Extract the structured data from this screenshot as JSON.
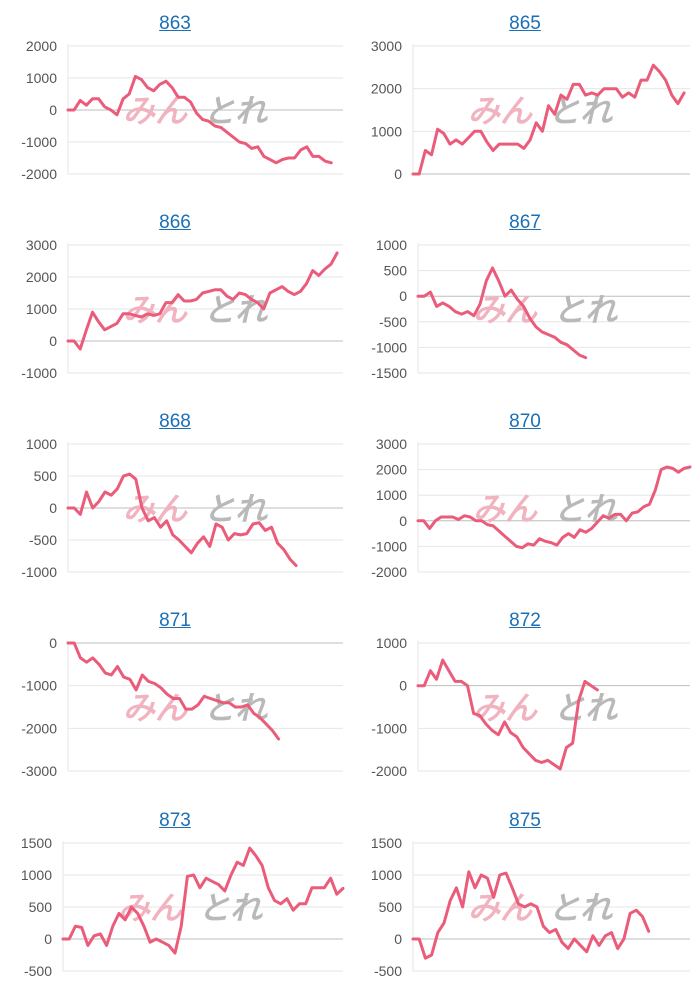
{
  "colors": {
    "line": "#ea5c7a",
    "grid": "#e6e6e6",
    "axis": "#c8c8c8",
    "title_link": "#1a6fb5",
    "tick_text": "#555555"
  },
  "watermark": {
    "left": "みん",
    "right": "とれ"
  },
  "chart_data": [
    {
      "type": "line",
      "title": "863",
      "ylim": [
        -2000,
        2000
      ],
      "yticks": [
        2000,
        1000,
        0,
        -1000,
        -2000
      ],
      "values": [
        0,
        0,
        300,
        150,
        350,
        350,
        100,
        0,
        -150,
        350,
        500,
        1050,
        950,
        700,
        600,
        800,
        900,
        700,
        400,
        400,
        250,
        -100,
        -300,
        -350,
        -500,
        -550,
        -700,
        -850,
        -1000,
        -1050,
        -1200,
        -1150,
        -1450,
        -1550,
        -1650,
        -1550,
        -1500,
        -1500,
        -1250,
        -1150,
        -1450,
        -1450,
        -1600,
        -1650
      ]
    },
    {
      "type": "line",
      "title": "865",
      "ylim": [
        0,
        3000
      ],
      "yticks": [
        3000,
        2000,
        1000,
        0
      ],
      "values": [
        0,
        0,
        550,
        450,
        1050,
        950,
        700,
        800,
        700,
        850,
        1000,
        1000,
        750,
        550,
        700,
        700,
        700,
        700,
        600,
        800,
        1200,
        1000,
        1600,
        1400,
        1850,
        1750,
        2100,
        2100,
        1850,
        1900,
        1850,
        2000,
        2000,
        2000,
        1800,
        1900,
        1800,
        2200,
        2200,
        2550,
        2400,
        2200,
        1850,
        1650,
        1900
      ]
    },
    {
      "type": "line",
      "title": "866",
      "ylim": [
        -1000,
        3000
      ],
      "yticks": [
        3000,
        2000,
        1000,
        0,
        -1000
      ],
      "values": [
        0,
        0,
        -250,
        350,
        900,
        600,
        350,
        450,
        550,
        850,
        850,
        800,
        750,
        850,
        800,
        850,
        1200,
        1200,
        1450,
        1250,
        1250,
        1300,
        1500,
        1550,
        1600,
        1600,
        1400,
        1300,
        1500,
        1450,
        1300,
        1200,
        1000,
        1500,
        1600,
        1700,
        1550,
        1450,
        1550,
        1800,
        2200,
        2050,
        2250,
        2400,
        2750
      ]
    },
    {
      "type": "line",
      "title": "867",
      "ylim": [
        -1500,
        1000
      ],
      "yticks": [
        1000,
        500,
        0,
        -500,
        -1000,
        -1500
      ],
      "values": [
        0,
        0,
        80,
        -200,
        -130,
        -200,
        -300,
        -350,
        -300,
        -380,
        -150,
        300,
        550,
        300,
        0,
        120,
        -60,
        -200,
        -430,
        -600,
        -700,
        -750,
        -800,
        -900,
        -950,
        -1050,
        -1150,
        -1200
      ]
    },
    {
      "type": "line",
      "title": "868",
      "ylim": [
        -1000,
        1000
      ],
      "yticks": [
        1000,
        500,
        0,
        -500,
        -1000
      ],
      "values": [
        0,
        0,
        -100,
        250,
        0,
        100,
        250,
        200,
        300,
        500,
        530,
        450,
        0,
        -200,
        -150,
        -300,
        -200,
        -420,
        -500,
        -600,
        -700,
        -550,
        -450,
        -600,
        -250,
        -300,
        -500,
        -400,
        -420,
        -400,
        -250,
        -230,
        -350,
        -300,
        -550,
        -650,
        -800,
        -900
      ]
    },
    {
      "type": "line",
      "title": "870",
      "ylim": [
        -2000,
        3000
      ],
      "yticks": [
        3000,
        2000,
        1000,
        0,
        -1000,
        -2000
      ],
      "values": [
        0,
        0,
        -300,
        0,
        150,
        150,
        150,
        50,
        200,
        150,
        0,
        0,
        -150,
        -200,
        -400,
        -600,
        -800,
        -1000,
        -1050,
        -900,
        -950,
        -700,
        -800,
        -850,
        -950,
        -650,
        -500,
        -650,
        -350,
        -450,
        -300,
        -50,
        200,
        100,
        250,
        250,
        0,
        300,
        350,
        550,
        650,
        1200,
        2000,
        2100,
        2050,
        1900,
        2050,
        2100
      ]
    },
    {
      "type": "line",
      "title": "871",
      "ylim": [
        -3000,
        0
      ],
      "yticks": [
        0,
        -1000,
        -2000,
        -3000
      ],
      "values": [
        0,
        0,
        -350,
        -450,
        -350,
        -500,
        -700,
        -750,
        -550,
        -800,
        -850,
        -1100,
        -750,
        -900,
        -950,
        -1050,
        -1200,
        -1300,
        -1300,
        -1550,
        -1550,
        -1450,
        -1250,
        -1300,
        -1350,
        -1400,
        -1400,
        -1500,
        -1500,
        -1450,
        -1650,
        -1750,
        -1900,
        -2050,
        -2250
      ]
    },
    {
      "type": "line",
      "title": "872",
      "ylim": [
        -2000,
        1000
      ],
      "yticks": [
        1000,
        0,
        -1000,
        -2000
      ],
      "values": [
        0,
        0,
        350,
        150,
        600,
        350,
        100,
        100,
        0,
        -650,
        -700,
        -900,
        -1050,
        -1150,
        -850,
        -1100,
        -1200,
        -1450,
        -1600,
        -1750,
        -1800,
        -1750,
        -1850,
        -1950,
        -1450,
        -1350,
        -350,
        100,
        0,
        -100
      ]
    },
    {
      "type": "line",
      "title": "873",
      "ylim": [
        -500,
        1500
      ],
      "yticks": [
        1500,
        1000,
        500,
        0,
        -500
      ],
      "values": [
        0,
        0,
        200,
        180,
        -100,
        50,
        80,
        -100,
        200,
        400,
        300,
        500,
        400,
        200,
        -50,
        0,
        -50,
        -100,
        -220,
        200,
        980,
        1000,
        800,
        950,
        900,
        850,
        750,
        1000,
        1200,
        1150,
        1420,
        1300,
        1150,
        800,
        600,
        550,
        630,
        450,
        550,
        550,
        800,
        800,
        800,
        950,
        700,
        790
      ]
    },
    {
      "type": "line",
      "title": "875",
      "ylim": [
        -500,
        1500
      ],
      "yticks": [
        1500,
        1000,
        500,
        0,
        -500
      ],
      "values": [
        0,
        0,
        -300,
        -250,
        100,
        250,
        600,
        800,
        500,
        1050,
        800,
        1000,
        950,
        650,
        1000,
        1030,
        800,
        550,
        500,
        550,
        500,
        200,
        100,
        150,
        -50,
        -150,
        0,
        -100,
        -200,
        50,
        -100,
        50,
        100,
        -150,
        0,
        400,
        450,
        350,
        120
      ]
    }
  ]
}
